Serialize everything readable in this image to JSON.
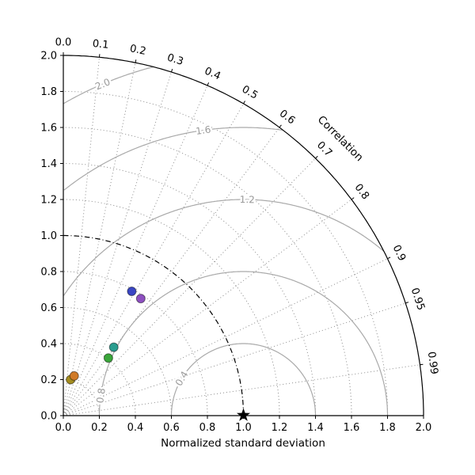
{
  "chart_data": {
    "type": "scatter",
    "subtype": "taylor-diagram",
    "xlabel": "Normalized standard deviation",
    "correlation_label": "Correlation",
    "xlim": [
      0.0,
      2.0
    ],
    "ylim": [
      0.0,
      2.0
    ],
    "radial_max": 2.0,
    "axis_ticks": [
      0.0,
      0.2,
      0.4,
      0.6,
      0.8,
      1.0,
      1.2,
      1.4,
      1.6,
      1.8,
      2.0
    ],
    "axis_tick_labels": [
      "0.0",
      "0.2",
      "0.4",
      "0.6",
      "0.8",
      "1.0",
      "1.2",
      "1.4",
      "1.6",
      "1.8",
      "2.0"
    ],
    "std_grid": [
      0.2,
      0.4,
      0.6,
      0.8,
      1.2,
      1.4,
      1.6,
      1.8
    ],
    "reference_std": 1.0,
    "correlation_ticks": [
      0.0,
      0.1,
      0.2,
      0.3,
      0.4,
      0.5,
      0.6,
      0.7,
      0.8,
      0.9,
      0.95,
      0.99
    ],
    "correlation_tick_labels": [
      "0.0",
      "0.1",
      "0.2",
      "0.3",
      "0.4",
      "0.5",
      "0.6",
      "0.7",
      "0.8",
      "0.9",
      "0.95",
      "0.99"
    ],
    "rms_contours": [
      {
        "radius": 0.4,
        "label": "0.4",
        "label_angle_deg": 149
      },
      {
        "radius": 0.8,
        "label": "0.8",
        "label_angle_deg": 172
      },
      {
        "radius": 1.2,
        "label": "1.2",
        "label_angle_deg": 89
      },
      {
        "radius": 1.6,
        "label": "1.6",
        "label_angle_deg": 98
      },
      {
        "radius": 2.0,
        "label": "2.0",
        "label_angle_deg": 113
      }
    ],
    "reference_point": {
      "x": 1.0,
      "y": 0.0,
      "std": 1.0,
      "corr": 1.0,
      "marker": "star",
      "color": "#000000"
    },
    "points": [
      {
        "name": "data-point-blue",
        "x": 0.38,
        "y": 0.69,
        "std": 0.78,
        "corr": 0.48,
        "color": "#3a46c4"
      },
      {
        "name": "data-point-purple",
        "x": 0.43,
        "y": 0.65,
        "std": 0.78,
        "corr": 0.55,
        "color": "#8d4fc0"
      },
      {
        "name": "data-point-green",
        "x": 0.25,
        "y": 0.32,
        "std": 0.41,
        "corr": 0.61,
        "color": "#3aa63a"
      },
      {
        "name": "data-point-teal",
        "x": 0.28,
        "y": 0.38,
        "std": 0.47,
        "corr": 0.6,
        "color": "#2a9d8f"
      },
      {
        "name": "data-point-olive",
        "x": 0.04,
        "y": 0.2,
        "std": 0.2,
        "corr": 0.21,
        "color": "#a38c1f"
      },
      {
        "name": "data-point-orange",
        "x": 0.06,
        "y": 0.22,
        "std": 0.23,
        "corr": 0.26,
        "color": "#d07a28"
      }
    ],
    "colors": {
      "background": "#ffffff",
      "axis": "#000000",
      "grid_dotted": "#8c8c8c",
      "rms_contour": "#a9a9a9",
      "rms_label": "#999999",
      "reference_arc": "#000000"
    }
  }
}
